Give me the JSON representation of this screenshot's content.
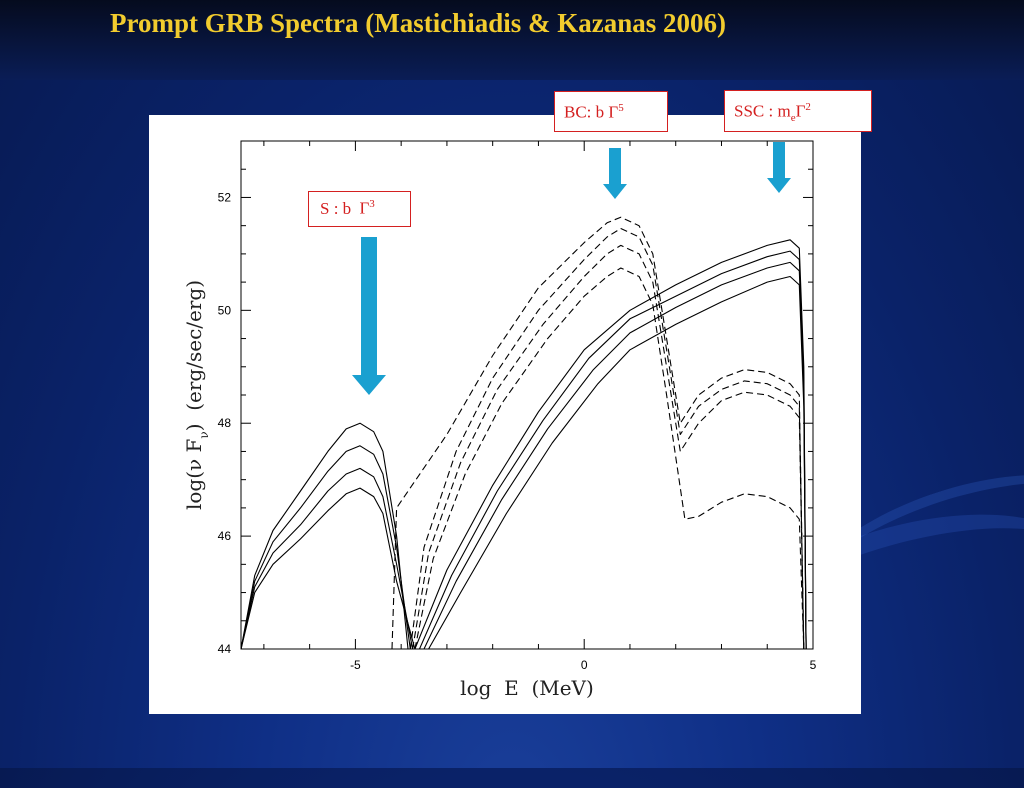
{
  "slide": {
    "title": "Prompt GRB Spectra (Mastichiadis & Kazanas 2006)"
  },
  "annotations": {
    "s": {
      "prefix": "S : b ",
      "symbol": "Γ",
      "sup": "3"
    },
    "bc": {
      "prefix": "BC: b ",
      "symbol": "Γ",
      "sup": "5"
    },
    "ssc": {
      "prefix": "SSC :  m",
      "sub": "e",
      "symbol": "Γ",
      "sup": "2"
    }
  },
  "colors": {
    "title": "#f2cc2e",
    "annotation": "#d42020",
    "arrow": "#1aa0d0",
    "background": "#0c2a7a"
  },
  "icons": [
    "arrow-down-icon",
    "arrow-down-icon",
    "arrow-down-icon"
  ],
  "chart_data": {
    "type": "line",
    "xlabel": "log  E  (MeV)",
    "ylabel": "log(ν F",
    "ylabel_sub": "ν",
    "ylabel_tail": ")  (erg/sec/erg)",
    "xlim": [
      -7.5,
      5
    ],
    "ylim": [
      44,
      53.0
    ],
    "xticks": [
      -5,
      0,
      5
    ],
    "xtick_labels": [
      "-5",
      "0",
      "5"
    ],
    "yticks": [
      44,
      46,
      48,
      50,
      52
    ],
    "ytick_labels": [
      "44",
      "46",
      "48",
      "50",
      "52"
    ],
    "grid": false,
    "series": [
      {
        "style": "solid",
        "points": [
          [
            -7.5,
            44
          ],
          [
            -7.2,
            45.3
          ],
          [
            -6.8,
            46.1
          ],
          [
            -6.2,
            46.8
          ],
          [
            -5.6,
            47.5
          ],
          [
            -5.2,
            47.9
          ],
          [
            -4.9,
            48.0
          ],
          [
            -4.6,
            47.85
          ],
          [
            -4.4,
            47.5
          ],
          [
            -4.1,
            46.0
          ],
          [
            -3.85,
            44
          ]
        ]
      },
      {
        "style": "solid",
        "points": [
          [
            -7.5,
            44
          ],
          [
            -7.2,
            45.2
          ],
          [
            -6.8,
            45.9
          ],
          [
            -6.2,
            46.5
          ],
          [
            -5.6,
            47.15
          ],
          [
            -5.2,
            47.5
          ],
          [
            -4.9,
            47.6
          ],
          [
            -4.6,
            47.45
          ],
          [
            -4.4,
            47.1
          ],
          [
            -4.1,
            45.8
          ],
          [
            -3.8,
            44
          ]
        ]
      },
      {
        "style": "solid",
        "points": [
          [
            -7.5,
            44
          ],
          [
            -7.2,
            45.1
          ],
          [
            -6.8,
            45.7
          ],
          [
            -6.2,
            46.2
          ],
          [
            -5.6,
            46.8
          ],
          [
            -5.2,
            47.1
          ],
          [
            -4.9,
            47.2
          ],
          [
            -4.6,
            47.05
          ],
          [
            -4.4,
            46.7
          ],
          [
            -4.1,
            45.5
          ],
          [
            -3.75,
            44
          ]
        ]
      },
      {
        "style": "solid",
        "points": [
          [
            -7.5,
            44
          ],
          [
            -7.2,
            45.0
          ],
          [
            -6.8,
            45.5
          ],
          [
            -6.2,
            45.95
          ],
          [
            -5.6,
            46.45
          ],
          [
            -5.2,
            46.75
          ],
          [
            -4.9,
            46.85
          ],
          [
            -4.6,
            46.7
          ],
          [
            -4.4,
            46.4
          ],
          [
            -4.1,
            45.2
          ],
          [
            -3.7,
            44
          ]
        ]
      },
      {
        "style": "solid",
        "points": [
          [
            -3.7,
            44
          ],
          [
            -3.0,
            45.4
          ],
          [
            -2.0,
            46.9
          ],
          [
            -1.0,
            48.2
          ],
          [
            0.0,
            49.3
          ],
          [
            1.0,
            50.0
          ],
          [
            2.0,
            50.45
          ],
          [
            3.0,
            50.85
          ],
          [
            4.0,
            51.15
          ],
          [
            4.5,
            51.25
          ],
          [
            4.7,
            51.1
          ],
          [
            4.8,
            49
          ],
          [
            4.85,
            44
          ]
        ]
      },
      {
        "style": "solid",
        "points": [
          [
            -3.6,
            44
          ],
          [
            -2.9,
            45.3
          ],
          [
            -1.9,
            46.8
          ],
          [
            -0.9,
            48.05
          ],
          [
            0.1,
            49.15
          ],
          [
            1.0,
            49.85
          ],
          [
            2.0,
            50.25
          ],
          [
            3.0,
            50.65
          ],
          [
            4.0,
            50.95
          ],
          [
            4.5,
            51.05
          ],
          [
            4.7,
            50.9
          ],
          [
            4.8,
            48.8
          ],
          [
            4.85,
            44
          ]
        ]
      },
      {
        "style": "solid",
        "points": [
          [
            -3.5,
            44
          ],
          [
            -2.8,
            45.2
          ],
          [
            -1.8,
            46.65
          ],
          [
            -0.8,
            47.9
          ],
          [
            0.2,
            48.95
          ],
          [
            1.0,
            49.6
          ],
          [
            2.0,
            50.05
          ],
          [
            3.0,
            50.45
          ],
          [
            4.0,
            50.75
          ],
          [
            4.5,
            50.85
          ],
          [
            4.7,
            50.7
          ],
          [
            4.8,
            48.6
          ],
          [
            4.85,
            44
          ]
        ]
      },
      {
        "style": "solid",
        "points": [
          [
            -3.4,
            44
          ],
          [
            -2.7,
            45.0
          ],
          [
            -1.7,
            46.4
          ],
          [
            -0.7,
            47.65
          ],
          [
            0.3,
            48.7
          ],
          [
            1.0,
            49.3
          ],
          [
            2.0,
            49.75
          ],
          [
            3.0,
            50.15
          ],
          [
            4.0,
            50.5
          ],
          [
            4.5,
            50.6
          ],
          [
            4.7,
            50.45
          ],
          [
            4.8,
            48.3
          ],
          [
            4.85,
            44
          ]
        ]
      },
      {
        "style": "dashed",
        "points": [
          [
            -4.2,
            44
          ],
          [
            -4.1,
            46.5
          ],
          [
            -3.0,
            47.8
          ],
          [
            -2.0,
            49.2
          ],
          [
            -1.0,
            50.4
          ],
          [
            0.0,
            51.2
          ],
          [
            0.5,
            51.55
          ],
          [
            0.8,
            51.65
          ],
          [
            1.2,
            51.5
          ],
          [
            1.5,
            51.0
          ],
          [
            1.8,
            49.5
          ],
          [
            2.1,
            48.0
          ],
          [
            2.5,
            48.5
          ],
          [
            3.0,
            48.8
          ],
          [
            3.5,
            48.95
          ],
          [
            4.0,
            48.9
          ],
          [
            4.5,
            48.7
          ],
          [
            4.7,
            48.5
          ],
          [
            4.8,
            44
          ]
        ]
      },
      {
        "style": "dashed",
        "points": [
          [
            -3.8,
            44
          ],
          [
            -3.5,
            45.8
          ],
          [
            -2.8,
            47.5
          ],
          [
            -2.0,
            48.8
          ],
          [
            -1.0,
            50.0
          ],
          [
            0.0,
            50.9
          ],
          [
            0.5,
            51.3
          ],
          [
            0.8,
            51.45
          ],
          [
            1.2,
            51.3
          ],
          [
            1.5,
            50.8
          ],
          [
            1.8,
            49.3
          ],
          [
            2.1,
            47.8
          ],
          [
            2.5,
            48.3
          ],
          [
            3.0,
            48.6
          ],
          [
            3.5,
            48.75
          ],
          [
            4.0,
            48.7
          ],
          [
            4.5,
            48.5
          ],
          [
            4.7,
            48.3
          ],
          [
            4.8,
            44
          ]
        ]
      },
      {
        "style": "dashed",
        "points": [
          [
            -3.75,
            44
          ],
          [
            -3.4,
            45.7
          ],
          [
            -2.7,
            47.3
          ],
          [
            -1.9,
            48.6
          ],
          [
            -0.9,
            49.75
          ],
          [
            0.0,
            50.6
          ],
          [
            0.5,
            51.0
          ],
          [
            0.8,
            51.15
          ],
          [
            1.2,
            51.0
          ],
          [
            1.5,
            50.5
          ],
          [
            1.8,
            49.0
          ],
          [
            2.1,
            47.5
          ],
          [
            2.5,
            48.0
          ],
          [
            3.0,
            48.4
          ],
          [
            3.5,
            48.55
          ],
          [
            4.0,
            48.5
          ],
          [
            4.5,
            48.3
          ],
          [
            4.7,
            48.1
          ],
          [
            4.8,
            44
          ]
        ]
      },
      {
        "style": "dashed",
        "points": [
          [
            -3.7,
            44
          ],
          [
            -3.3,
            45.6
          ],
          [
            -2.6,
            47.1
          ],
          [
            -1.8,
            48.35
          ],
          [
            -0.8,
            49.5
          ],
          [
            0.0,
            50.25
          ],
          [
            0.5,
            50.6
          ],
          [
            0.8,
            50.75
          ],
          [
            1.2,
            50.6
          ],
          [
            1.5,
            50.1
          ],
          [
            1.8,
            48.5
          ],
          [
            2.2,
            46.3
          ],
          [
            2.5,
            46.35
          ],
          [
            3.0,
            46.6
          ],
          [
            3.5,
            46.75
          ],
          [
            4.0,
            46.7
          ],
          [
            4.5,
            46.5
          ],
          [
            4.7,
            46.3
          ],
          [
            4.8,
            44
          ]
        ]
      }
    ]
  }
}
